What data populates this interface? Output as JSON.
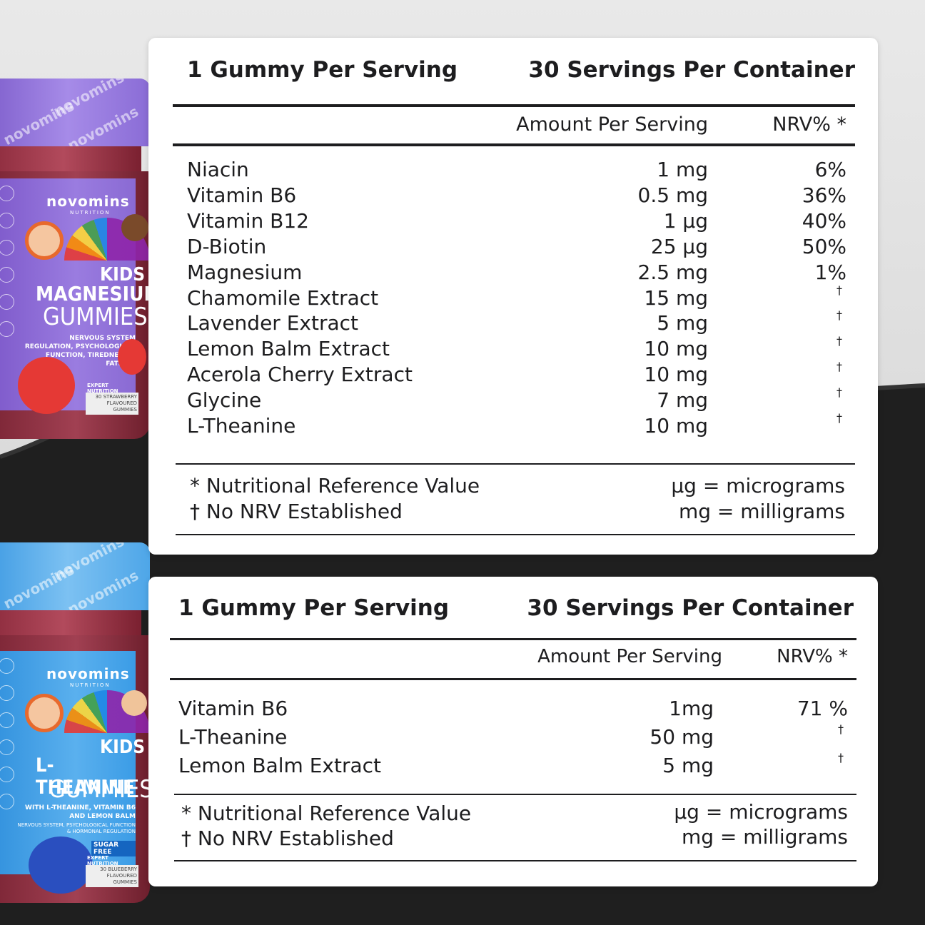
{
  "top_card": {
    "serving": "1 Gummy Per Serving",
    "container": "30 Servings Per Container",
    "col_amount": "Amount Per Serving",
    "col_nrv": "NRV% *",
    "rows": [
      {
        "name": "Niacin",
        "amount": "1 mg",
        "nrv": "6%"
      },
      {
        "name": "Vitamin B6",
        "amount": "0.5 mg",
        "nrv": "36%"
      },
      {
        "name": "Vitamin B12",
        "amount": "1 µg",
        "nrv": "40%"
      },
      {
        "name": "D-Biotin",
        "amount": "25 µg",
        "nrv": "50%"
      },
      {
        "name": "Magnesium",
        "amount": "2.5 mg",
        "nrv": "1%"
      },
      {
        "name": "Chamomile Extract",
        "amount": "15 mg",
        "nrv": "†"
      },
      {
        "name": "Lavender Extract",
        "amount": "5 mg",
        "nrv": "†"
      },
      {
        "name": "Lemon Balm Extract",
        "amount": "10 mg",
        "nrv": "†"
      },
      {
        "name": "Acerola Cherry Extract",
        "amount": "10 mg",
        "nrv": "†"
      },
      {
        "name": "Glycine",
        "amount": "7 mg",
        "nrv": "†"
      },
      {
        "name": "L-Theanine",
        "amount": "10 mg",
        "nrv": "†"
      }
    ],
    "foot_nrv": "* Nutritional Reference Value",
    "foot_none": "† No NRV Established",
    "foot_ug": "µg = micrograms",
    "foot_mg": "mg = milligrams"
  },
  "bottom_card": {
    "serving": "1 Gummy Per Serving",
    "container": "30 Servings Per Container",
    "col_amount": "Amount Per Serving",
    "col_nrv": "NRV% *",
    "rows": [
      {
        "name": "Vitamin B6",
        "amount": "1mg",
        "nrv": "71 %"
      },
      {
        "name": "L-Theanine",
        "amount": "50 mg",
        "nrv": "†"
      },
      {
        "name": "Lemon Balm Extract",
        "amount": "5 mg",
        "nrv": "†"
      }
    ],
    "foot_nrv": "* Nutritional Reference Value",
    "foot_none": "† No NRV Established",
    "foot_ug": "µg = micrograms",
    "foot_mg": "mg = milligrams"
  },
  "jar_top": {
    "brand": "novomins",
    "brand_sub": "NUTRITION",
    "line1": "KIDS",
    "line2": "MAGNESIUM",
    "line3": "GUMMIES",
    "desc": "NERVOUS SYSTEM REGULATION, PSYCHOLOGICAL FUNCTION, TIREDNESS & FATIGUE",
    "badge": "EXPERT NUTRITION",
    "count": "30 STRAWBERRY FLAVOURED GUMMIES",
    "colors": {
      "label": "#8f6bd6",
      "lid": "#9b7ee0"
    }
  },
  "jar_bottom": {
    "brand": "novomins",
    "brand_sub": "NUTRITION",
    "line1": "KIDS",
    "line2": "L-THEANINE",
    "line3": "GUMMIES",
    "desc": "WITH L-THEANINE, VITAMIN B6 AND LEMON BALM",
    "desc2": "NERVOUS SYSTEM, PSYCHOLOGICAL FUNCTION & HORMONAL REGULATION",
    "sugar": "SUGAR FREE",
    "badge": "EXPERT NUTRITION",
    "count": "30 BLUEBERRY FLAVOURED GUMMIES",
    "colors": {
      "label": "#3d9ee8",
      "lid": "#5ab0ee"
    }
  }
}
